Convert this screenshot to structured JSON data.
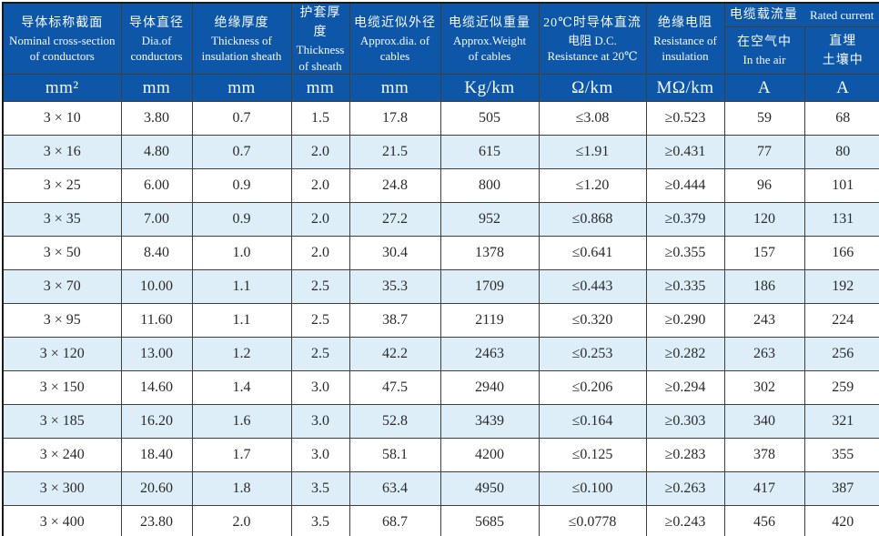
{
  "table_title": "Cable specification table",
  "colors": {
    "header_bg": "#0e57a8",
    "header_text": "#f6faff",
    "stripe_bg": "#ddeef9",
    "row_bg": "#ffffff",
    "grid_line": "#3f3f3f",
    "data_text": "#2a2a2a"
  },
  "header": {
    "cols": [
      {
        "zh": "导体标称截面",
        "en1": "Nominal cross-section",
        "en2": "of conductors"
      },
      {
        "zh": "导体直径",
        "en1": "Dia.of",
        "en2": "conductors"
      },
      {
        "zh": "绝缘厚度",
        "en1": "Thickness of",
        "en2": "insulation sheath"
      },
      {
        "zh": "护套厚度",
        "en1": "Thickness",
        "en2": "of sheath"
      },
      {
        "zh": "电缆近似外径",
        "en1": "Approx.dia. of",
        "en2": "cables"
      },
      {
        "zh": "电缆近似重量",
        "en1": "Approx.Weight",
        "en2": "of cables"
      },
      {
        "zh": "20℃时导体直流",
        "en1": "电阻 D.C.",
        "en2": "Resistance at 20℃"
      },
      {
        "zh": "绝缘电阻",
        "en1": "Resistance of",
        "en2": "insulation"
      }
    ],
    "group": {
      "zh": "电缆载流量",
      "en": "Rated current"
    },
    "air": {
      "zh": "在空气中",
      "en": "In the air"
    },
    "buried": {
      "zh": "直埋",
      "en": "土壤中"
    }
  },
  "units": [
    "mm²",
    "mm",
    "mm",
    "mm",
    "mm",
    "Kg/km",
    "Ω/km",
    "MΩ/km",
    "A",
    "A"
  ],
  "rows": [
    [
      "3 × 10",
      "3.80",
      "0.7",
      "1.5",
      "17.8",
      "505",
      "≤3.08",
      "≥0.523",
      "59",
      "68"
    ],
    [
      "3 × 16",
      "4.80",
      "0.7",
      "2.0",
      "21.5",
      "615",
      "≤1.91",
      "≥0.431",
      "77",
      "80"
    ],
    [
      "3 × 25",
      "6.00",
      "0.9",
      "2.0",
      "24.8",
      "800",
      "≤1.20",
      "≥0.444",
      "96",
      "101"
    ],
    [
      "3 × 35",
      "7.00",
      "0.9",
      "2.0",
      "27.2",
      "952",
      "≤0.868",
      "≥0.379",
      "120",
      "131"
    ],
    [
      "3 × 50",
      "8.40",
      "1.0",
      "2.0",
      "30.4",
      "1378",
      "≤0.641",
      "≥0.355",
      "157",
      "166"
    ],
    [
      "3 × 70",
      "10.00",
      "1.1",
      "2.5",
      "35.3",
      "1709",
      "≤0.443",
      "≥0.335",
      "186",
      "192"
    ],
    [
      "3 × 95",
      "11.60",
      "1.1",
      "2.5",
      "38.7",
      "2119",
      "≤0.320",
      "≥0.290",
      "243",
      "224"
    ],
    [
      "3 × 120",
      "13.00",
      "1.2",
      "2.5",
      "42.2",
      "2463",
      "≤0.253",
      "≥0.282",
      "263",
      "256"
    ],
    [
      "3 × 150",
      "14.60",
      "1.4",
      "3.0",
      "47.5",
      "2940",
      "≤0.206",
      "≥0.294",
      "302",
      "259"
    ],
    [
      "3 × 185",
      "16.20",
      "1.6",
      "3.0",
      "52.8",
      "3439",
      "≤0.164",
      "≥0.303",
      "340",
      "321"
    ],
    [
      "3 × 240",
      "18.40",
      "1.7",
      "3.0",
      "58.1",
      "4200",
      "≤0.125",
      "≥0.283",
      "378",
      "355"
    ],
    [
      "3 × 300",
      "20.60",
      "1.8",
      "3.5",
      "63.4",
      "4950",
      "≤0.100",
      "≥0.263",
      "417",
      "387"
    ],
    [
      "3 × 400",
      "23.80",
      "2.0",
      "3.5",
      "68.7",
      "5685",
      "≤0.0778",
      "≥0.243",
      "456",
      "420"
    ]
  ]
}
